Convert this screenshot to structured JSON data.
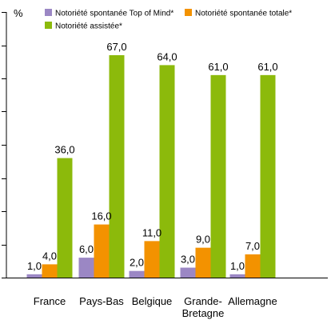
{
  "chart_data": {
    "type": "bar",
    "ylabel": "%",
    "ylim": [
      0,
      80
    ],
    "y_tick_step": 10,
    "grid": false,
    "legend_position": "top",
    "categories": [
      "France",
      "Pays-Bas",
      "Belgique",
      "Grande-\nBretagne",
      "Allemagne"
    ],
    "series": [
      {
        "name": "Notoriété spontanée Top of Mind*",
        "color": "#9b87c4",
        "values": [
          1.0,
          6.0,
          2.0,
          3.0,
          1.0
        ]
      },
      {
        "name": "Notoriété spontanée totale*",
        "color": "#f39200",
        "values": [
          4.0,
          16.0,
          11.0,
          9.0,
          7.0
        ]
      },
      {
        "name": "Notoriété assistée*",
        "color": "#8cba0b",
        "values": [
          36.0,
          67.0,
          64.0,
          61.0,
          61.0
        ]
      }
    ],
    "value_format": "comma-one-decimal"
  }
}
